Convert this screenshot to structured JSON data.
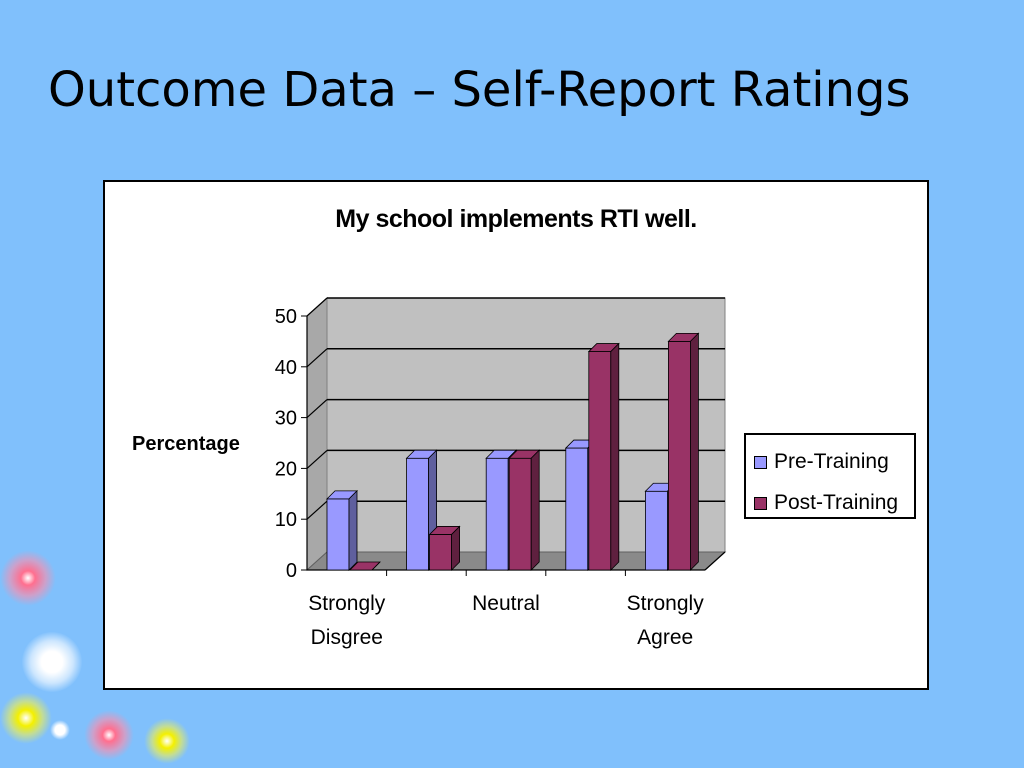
{
  "slide": {
    "title": "Outcome Data – Self-Report Ratings"
  },
  "colors": {
    "background": "#80c0fc",
    "pre_training": "#9999ff",
    "post_training": "#993366",
    "plot_wall": "#c0c0c0"
  },
  "chart_data": {
    "type": "bar",
    "title": "My school implements RTI well.",
    "xlabel": "",
    "ylabel": "Percentage",
    "ylim": [
      0,
      50
    ],
    "yticks": [
      0,
      10,
      20,
      30,
      40,
      50
    ],
    "grid": true,
    "legend_position": "right",
    "categories": [
      [
        "Strongly",
        "Disgree"
      ],
      [],
      [
        "Neutral"
      ],
      [],
      [
        "Strongly",
        "Agree"
      ]
    ],
    "series": [
      {
        "name": "Pre-Training",
        "values": [
          14,
          22,
          22,
          24,
          15.5
        ]
      },
      {
        "name": "Post-Training",
        "values": [
          0,
          7,
          22,
          43,
          45
        ]
      }
    ]
  }
}
